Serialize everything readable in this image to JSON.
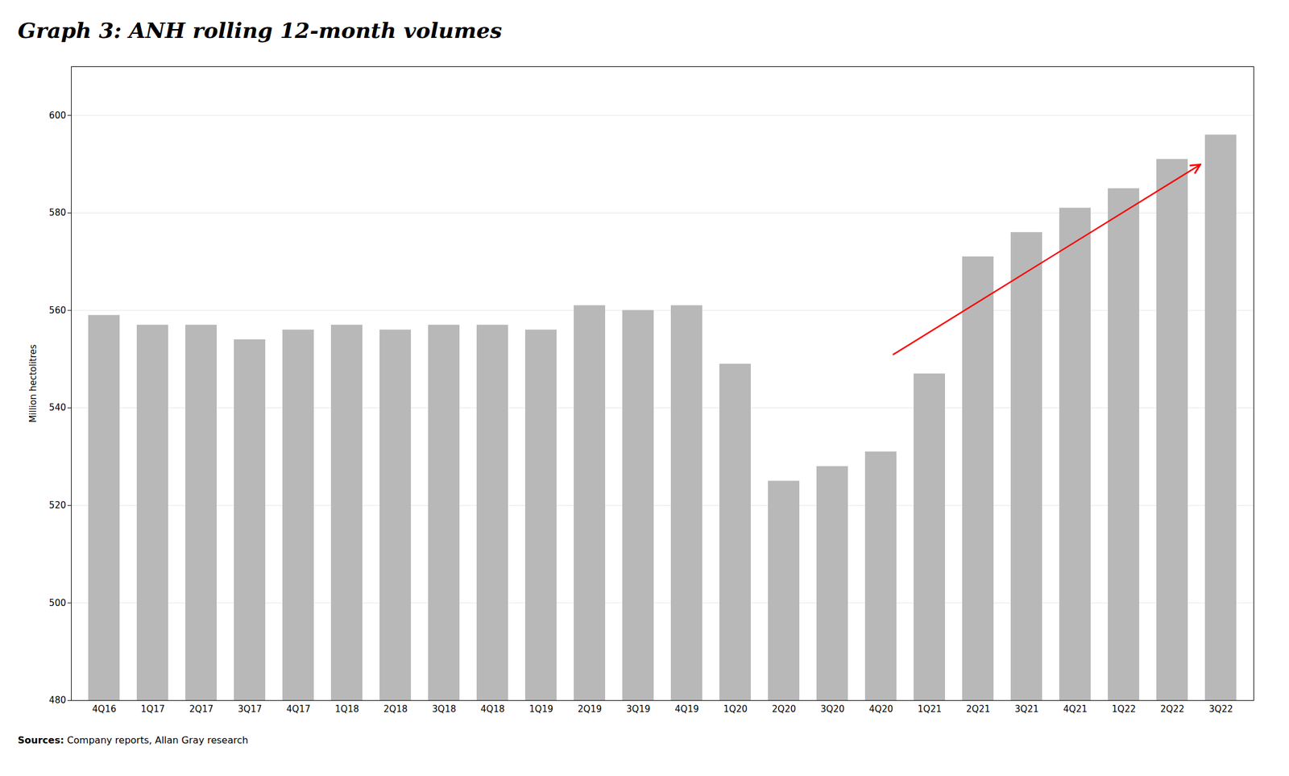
{
  "chart_data": {
    "type": "bar",
    "title": "Graph 3: ANH rolling 12-month volumes",
    "y_label": "Million hectolitres",
    "caption": "Sources: Company reports, Allan Gray research",
    "categories": [
      "4Q16",
      "1Q17",
      "2Q17",
      "3Q17",
      "4Q17",
      "1Q18",
      "2Q18",
      "3Q18",
      "4Q18",
      "1Q19",
      "2Q19",
      "3Q19",
      "4Q19",
      "1Q20",
      "2Q20",
      "3Q20",
      "4Q20",
      "1Q21",
      "2Q21",
      "3Q21",
      "4Q21",
      "1Q22",
      "2Q22",
      "3Q22"
    ],
    "values": [
      559,
      557,
      557,
      554,
      556,
      557,
      556,
      557,
      557,
      556,
      561,
      560,
      561,
      549,
      525,
      528,
      531,
      547,
      571,
      576,
      581,
      585,
      591,
      596
    ],
    "color": "#b8b8b8",
    "ylim": [
      480,
      610
    ],
    "yticks": [
      480,
      500,
      520,
      540,
      560,
      580,
      600
    ],
    "grid": true
  }
}
